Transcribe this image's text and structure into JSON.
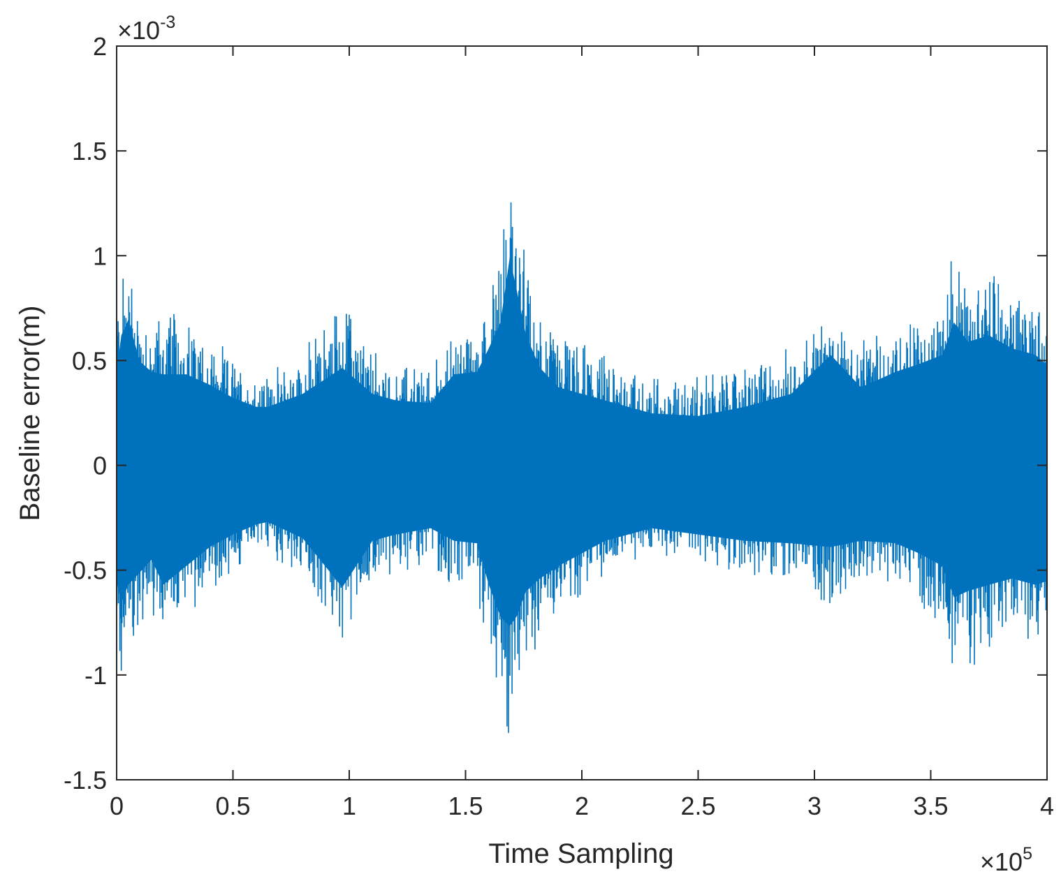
{
  "chart_data": {
    "type": "line",
    "title": "",
    "xlabel": "Time Sampling",
    "ylabel": "Baseline error(m)",
    "x_exponent_label": {
      "base": "×10",
      "exp": "5"
    },
    "y_exponent_label": {
      "base": "×10",
      "exp": "-3"
    },
    "x_scale": 100000,
    "y_scale": 0.001,
    "xlim": [
      0,
      4
    ],
    "ylim": [
      -1.5,
      2
    ],
    "xticks": [
      0,
      0.5,
      1,
      1.5,
      2,
      2.5,
      3,
      3.5,
      4
    ],
    "xtick_labels": [
      "0",
      "0.5",
      "1",
      "1.5",
      "2",
      "2.5",
      "3",
      "3.5",
      "4"
    ],
    "yticks": [
      -1.5,
      -1,
      -0.5,
      0,
      0.5,
      1,
      1.5,
      2
    ],
    "ytick_labels": [
      "-1.5",
      "-1",
      "-0.5",
      "0",
      "0.5",
      "1",
      "1.5",
      "2"
    ],
    "grid": false,
    "legend": "none",
    "series_color": "#0072BD",
    "series": [
      {
        "x": [
          0,
          0.02,
          0.05,
          0.1,
          0.15,
          0.2,
          0.3,
          0.4,
          0.5,
          0.6,
          0.65,
          0.8,
          0.97,
          1.1,
          1.2,
          1.35,
          1.45,
          1.55,
          1.6,
          1.65,
          1.69,
          1.72,
          1.76,
          1.82,
          1.9,
          2.0,
          2.1,
          2.2,
          2.3,
          2.5,
          2.7,
          2.9,
          3.07,
          3.2,
          3.35,
          3.45,
          3.55,
          3.6,
          3.66,
          3.75,
          3.85,
          3.95,
          4.0
        ],
        "envelope_upper": [
          0.72,
          1.0,
          1.12,
          0.8,
          0.72,
          0.7,
          0.7,
          0.62,
          0.52,
          0.45,
          0.45,
          0.55,
          0.75,
          0.55,
          0.5,
          0.48,
          0.7,
          0.72,
          0.9,
          1.1,
          1.6,
          1.35,
          1.0,
          0.75,
          0.6,
          0.55,
          0.5,
          0.45,
          0.4,
          0.38,
          0.45,
          0.55,
          0.85,
          0.6,
          0.72,
          0.78,
          0.85,
          1.1,
          0.95,
          1.0,
          0.9,
          0.85,
          0.77
        ],
        "envelope_lower": [
          -0.92,
          -1.1,
          -0.95,
          -0.85,
          -0.75,
          -0.95,
          -0.8,
          -0.65,
          -0.55,
          -0.47,
          -0.45,
          -0.58,
          -0.97,
          -0.6,
          -0.55,
          -0.5,
          -0.6,
          -0.62,
          -0.95,
          -1.2,
          -1.28,
          -1.2,
          -1.0,
          -0.9,
          -0.8,
          -0.7,
          -0.6,
          -0.55,
          -0.5,
          -0.55,
          -0.6,
          -0.62,
          -0.65,
          -0.6,
          -0.62,
          -0.7,
          -0.8,
          -1.05,
          -1.0,
          -0.95,
          -0.9,
          -0.95,
          -0.92
        ]
      }
    ]
  }
}
